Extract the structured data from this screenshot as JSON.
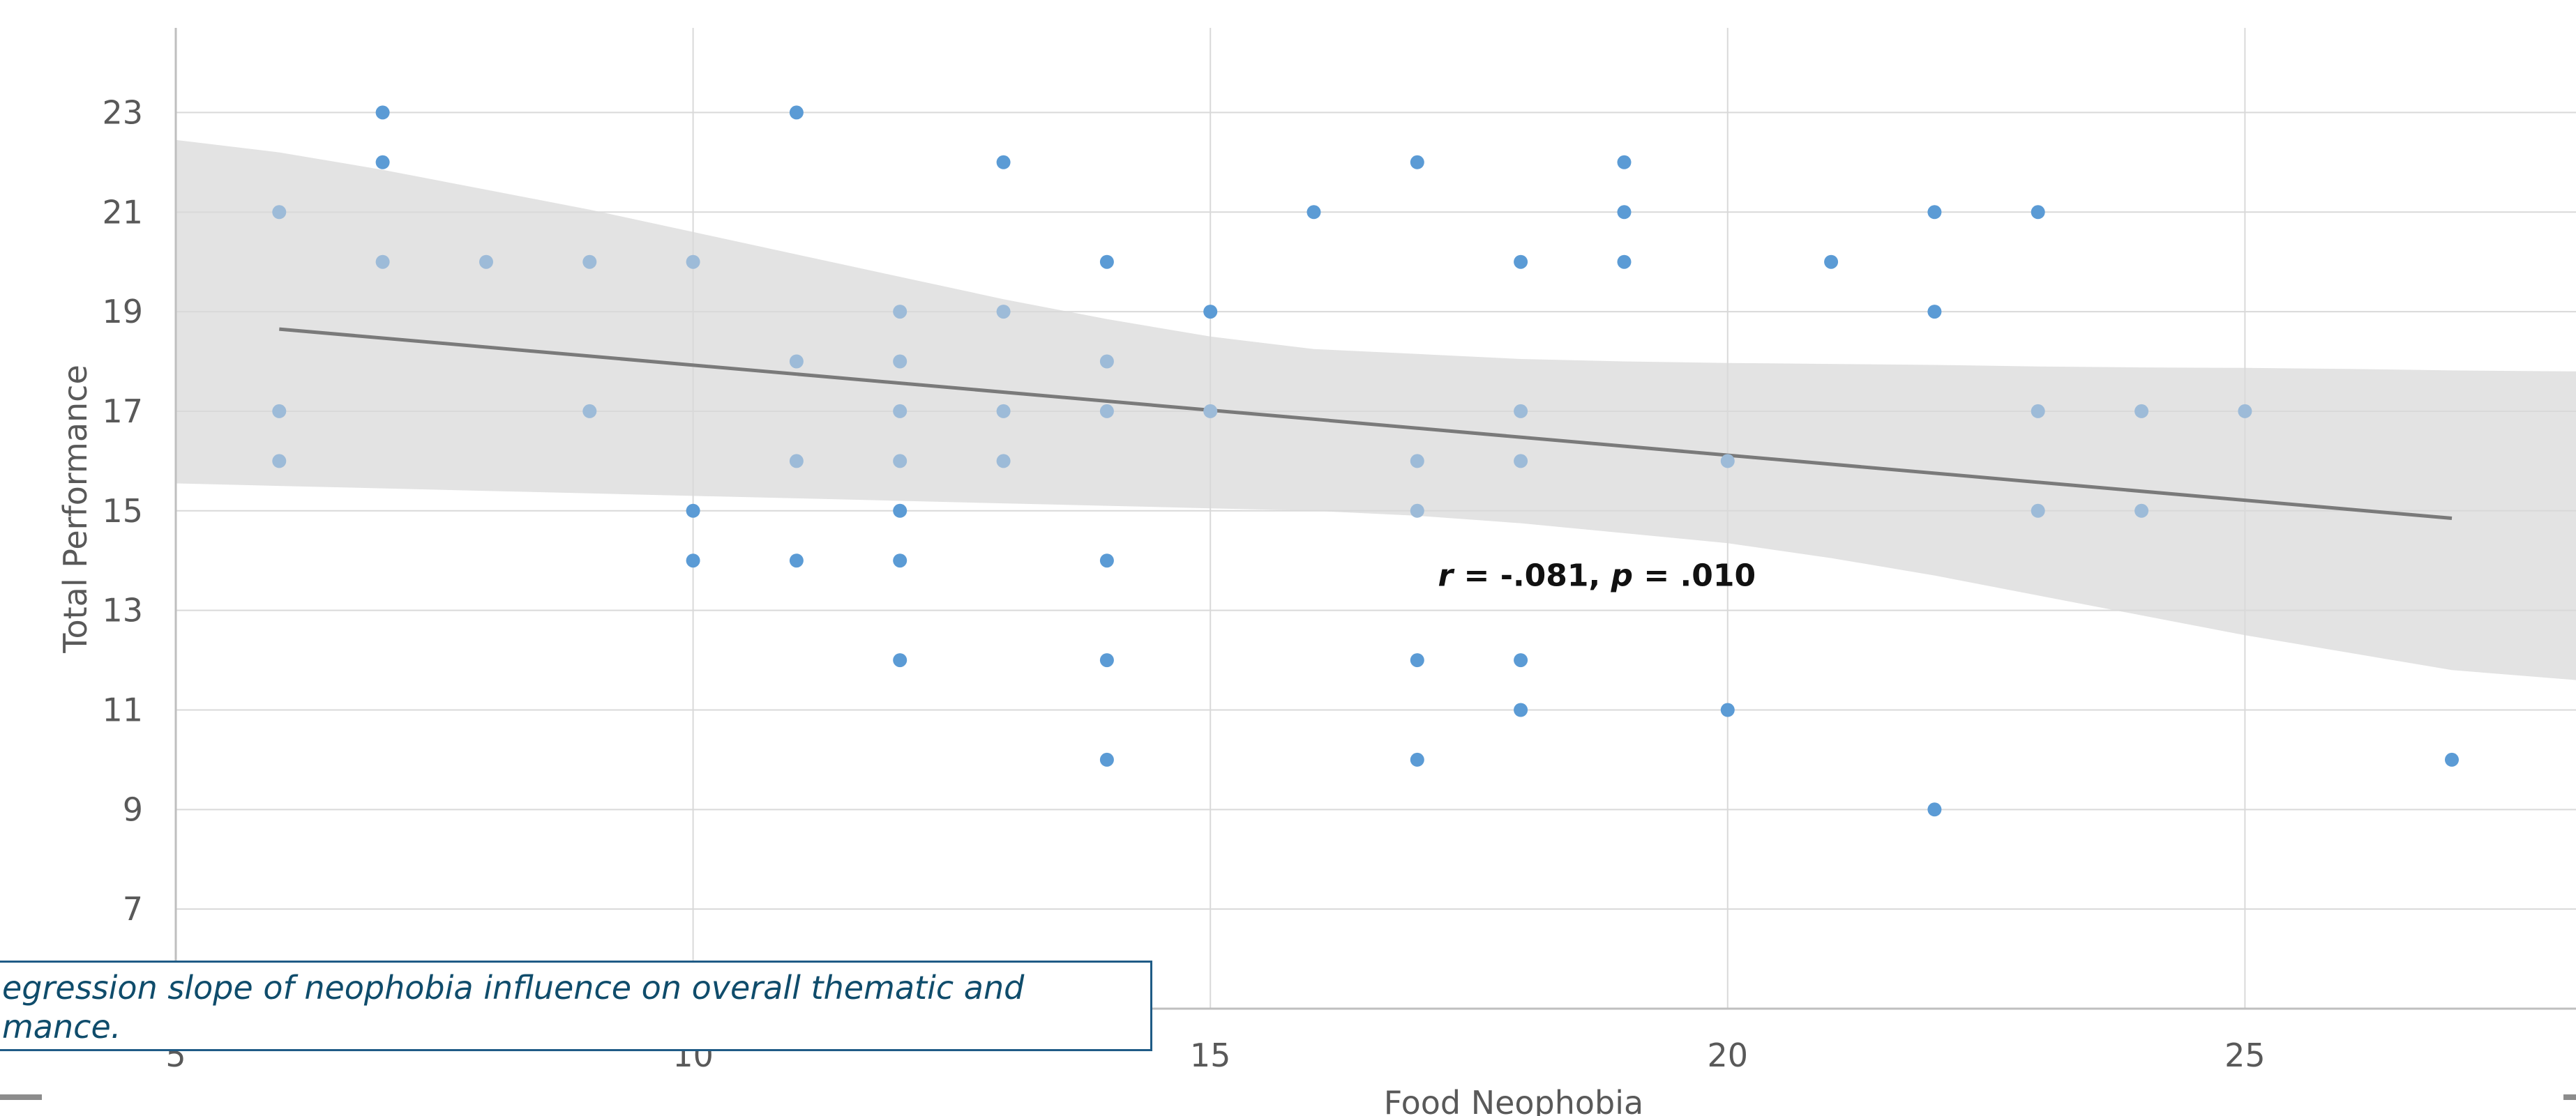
{
  "chart_data": {
    "type": "scatter",
    "xlabel": "Food Neophobia",
    "ylabel": "Total Performance",
    "x_ticks": [
      5,
      10,
      15,
      20,
      25
    ],
    "y_ticks": [
      7,
      9,
      11,
      13,
      15,
      17,
      19,
      21,
      23
    ],
    "xlim": [
      5,
      28.2
    ],
    "ylim": [
      5,
      24.7
    ],
    "grid": true,
    "colors": {
      "inside_band": "#9dbbd8",
      "outside_band": "#5b9bd5",
      "band": "#e3e3e3",
      "line": "#7a7a7a",
      "grid": "#d9d9d9"
    },
    "points": [
      {
        "x": 6,
        "y": 21
      },
      {
        "x": 6,
        "y": 17
      },
      {
        "x": 6,
        "y": 16
      },
      {
        "x": 7,
        "y": 23
      },
      {
        "x": 7,
        "y": 22
      },
      {
        "x": 7,
        "y": 20
      },
      {
        "x": 8,
        "y": 20
      },
      {
        "x": 9,
        "y": 20
      },
      {
        "x": 9,
        "y": 17
      },
      {
        "x": 10,
        "y": 20
      },
      {
        "x": 10,
        "y": 15
      },
      {
        "x": 10,
        "y": 14
      },
      {
        "x": 11,
        "y": 23
      },
      {
        "x": 11,
        "y": 18
      },
      {
        "x": 11,
        "y": 16
      },
      {
        "x": 11,
        "y": 14
      },
      {
        "x": 12,
        "y": 19
      },
      {
        "x": 12,
        "y": 18
      },
      {
        "x": 12,
        "y": 17
      },
      {
        "x": 12,
        "y": 16
      },
      {
        "x": 12,
        "y": 15
      },
      {
        "x": 12,
        "y": 14
      },
      {
        "x": 12,
        "y": 12
      },
      {
        "x": 13,
        "y": 22
      },
      {
        "x": 13,
        "y": 19
      },
      {
        "x": 13,
        "y": 17
      },
      {
        "x": 13,
        "y": 16
      },
      {
        "x": 14,
        "y": 20
      },
      {
        "x": 14,
        "y": 18
      },
      {
        "x": 14,
        "y": 17
      },
      {
        "x": 14,
        "y": 14
      },
      {
        "x": 14,
        "y": 12
      },
      {
        "x": 14,
        "y": 10
      },
      {
        "x": 15,
        "y": 19
      },
      {
        "x": 15,
        "y": 17
      },
      {
        "x": 16,
        "y": 21
      },
      {
        "x": 17,
        "y": 22
      },
      {
        "x": 17,
        "y": 16
      },
      {
        "x": 17,
        "y": 15
      },
      {
        "x": 17,
        "y": 12
      },
      {
        "x": 17,
        "y": 10
      },
      {
        "x": 18,
        "y": 20
      },
      {
        "x": 18,
        "y": 17
      },
      {
        "x": 18,
        "y": 16
      },
      {
        "x": 18,
        "y": 12
      },
      {
        "x": 18,
        "y": 11
      },
      {
        "x": 19,
        "y": 22
      },
      {
        "x": 19,
        "y": 21
      },
      {
        "x": 19,
        "y": 20
      },
      {
        "x": 20,
        "y": 16
      },
      {
        "x": 20,
        "y": 11
      },
      {
        "x": 21,
        "y": 20
      },
      {
        "x": 22,
        "y": 21
      },
      {
        "x": 22,
        "y": 19
      },
      {
        "x": 22,
        "y": 9
      },
      {
        "x": 23,
        "y": 21
      },
      {
        "x": 23,
        "y": 17
      },
      {
        "x": 23,
        "y": 15
      },
      {
        "x": 24,
        "y": 17
      },
      {
        "x": 24,
        "y": 15
      },
      {
        "x": 25,
        "y": 17
      },
      {
        "x": 27,
        "y": 10
      }
    ],
    "regression_line": {
      "x": [
        6,
        27
      ],
      "y": [
        18.65,
        14.85
      ]
    },
    "confidence_band": {
      "x": [
        5,
        6,
        7,
        8,
        9,
        10,
        11,
        12,
        13,
        14,
        15,
        16,
        17,
        18,
        19,
        20,
        21,
        22,
        23,
        24,
        25,
        26,
        27,
        28.2
      ],
      "upper": [
        22.45,
        22.2,
        21.85,
        21.45,
        21.05,
        20.6,
        20.15,
        19.7,
        19.25,
        18.85,
        18.5,
        18.25,
        18.15,
        18.05,
        18.0,
        17.97,
        17.95,
        17.93,
        17.9,
        17.88,
        17.87,
        17.85,
        17.82,
        17.8
      ],
      "lower": [
        15.55,
        15.5,
        15.45,
        15.4,
        15.35,
        15.3,
        15.25,
        15.2,
        15.15,
        15.1,
        15.05,
        15.0,
        14.9,
        14.75,
        14.55,
        14.35,
        14.05,
        13.7,
        13.3,
        12.9,
        12.5,
        12.15,
        11.8,
        11.6
      ]
    },
    "annotation": {
      "parts": [
        {
          "text": "r",
          "italic": true
        },
        {
          "text": " = -.081, ",
          "italic": false
        },
        {
          "text": "p",
          "italic": true
        },
        {
          "text": " = .010",
          "italic": false
        }
      ],
      "x": 17.2,
      "y": 13.7
    }
  },
  "caption": {
    "line1": "egression slope of neophobia influence on overall thematic and",
    "line2": "mance."
  }
}
